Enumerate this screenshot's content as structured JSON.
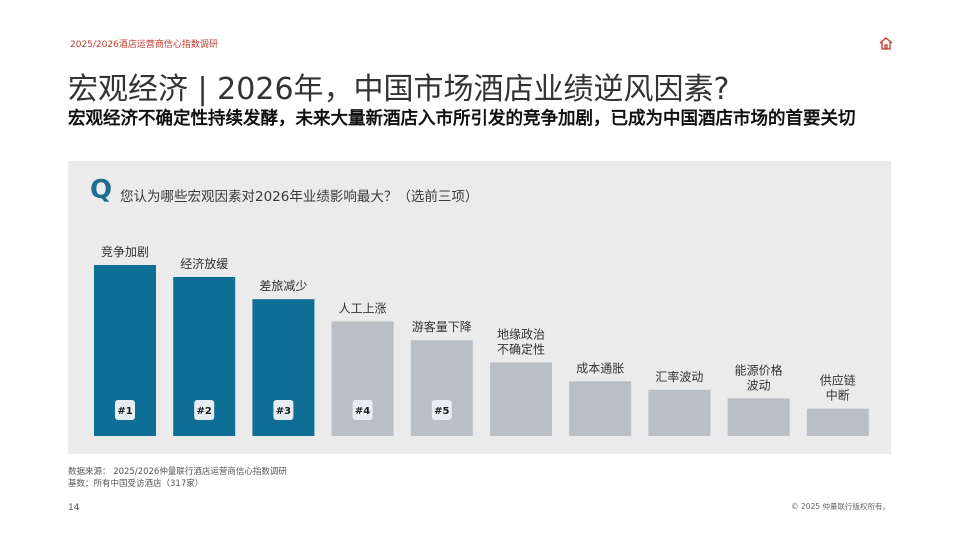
{
  "header": {
    "tag": "2025/2026酒店运营商信心指数调研",
    "home_icon": "home-icon"
  },
  "title": "宏观经济 | 2026年，中国市场酒店业绩逆风因素?",
  "subtitle": "宏观经济不确定性持续发酵，未来大量新酒店入市所引发的竞争加剧，已成为中国酒店市场的首要关切",
  "question": {
    "mark": "Q",
    "text": "您认为哪些宏观因素对2026年业绩影响最大？（选前三项）"
  },
  "colors": {
    "highlight": "#0f6e95",
    "muted": "#b9bfc4",
    "panel": "#ebebeb",
    "accent": "#c0392b"
  },
  "chart_data": {
    "type": "bar",
    "categories": [
      [
        "竞争加剧"
      ],
      [
        "经济放缓"
      ],
      [
        "差旅减少"
      ],
      [
        "人工上涨"
      ],
      [
        "游客量下降"
      ],
      [
        "地缘政治",
        "不确定性"
      ],
      [
        "成本通胀"
      ],
      [
        "汇率波动"
      ],
      [
        "能源价格",
        "波动"
      ],
      [
        "供应链",
        "中断"
      ]
    ],
    "values": [
      100,
      93,
      80,
      67,
      56,
      43,
      32,
      27,
      22,
      16
    ],
    "ranks": [
      "#1",
      "#2",
      "#3",
      "#4",
      "#5",
      "",
      "",
      "",
      "",
      ""
    ],
    "highlighted_count": 3,
    "value_scale": "relative (no numeric axis shown)",
    "grid": false,
    "legend": "none"
  },
  "footer": {
    "source": "数据来源：  2025/2026仲量联行酒店运营商信心指数调研",
    "base": "基数：所有中国受访酒店（317家）",
    "page": "14",
    "copyright": "© 2025 仲量联行版权所有。"
  }
}
